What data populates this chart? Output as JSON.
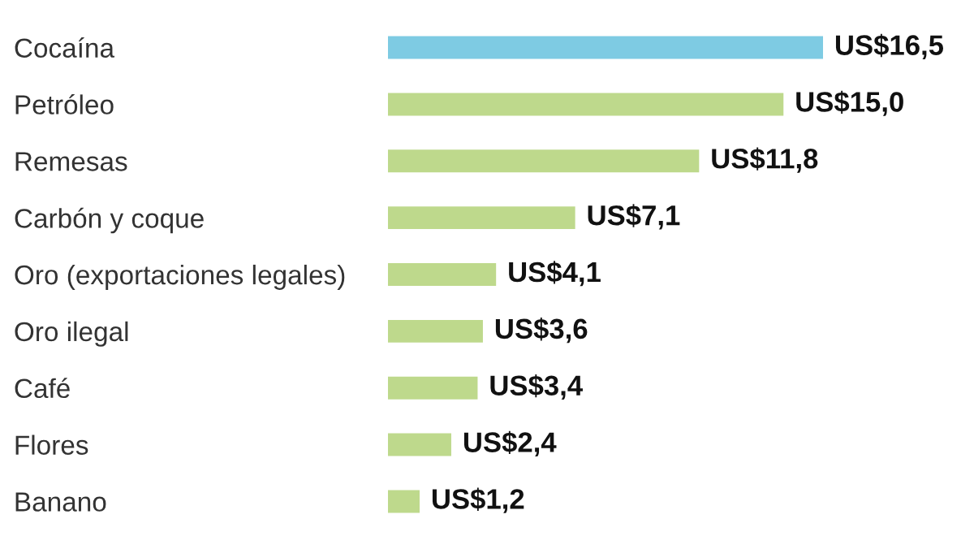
{
  "chart_data": {
    "type": "bar",
    "orientation": "horizontal",
    "categories": [
      "Cocaína",
      "Petróleo",
      "Remesas",
      "Carbón y coque",
      "Oro (exportaciones legales)",
      "Oro ilegal",
      "Café",
      "Flores",
      "Banano"
    ],
    "values": [
      16.5,
      15.0,
      11.8,
      7.1,
      4.1,
      3.6,
      3.4,
      2.4,
      1.2
    ],
    "colors": [
      "#7ecbe3",
      "#bed98c",
      "#bed98c",
      "#bed98c",
      "#bed98c",
      "#bed98c",
      "#bed98c",
      "#bed98c",
      "#bed98c"
    ],
    "value_labels": [
      "US$16,5",
      "US$15,0",
      "US$11,8",
      "US$7,1",
      "US$4,1",
      "US$3,6",
      "US$3,4",
      "US$2,4",
      "US$1,2"
    ],
    "tick_labels": "y",
    "grid": false,
    "legend": false
  }
}
